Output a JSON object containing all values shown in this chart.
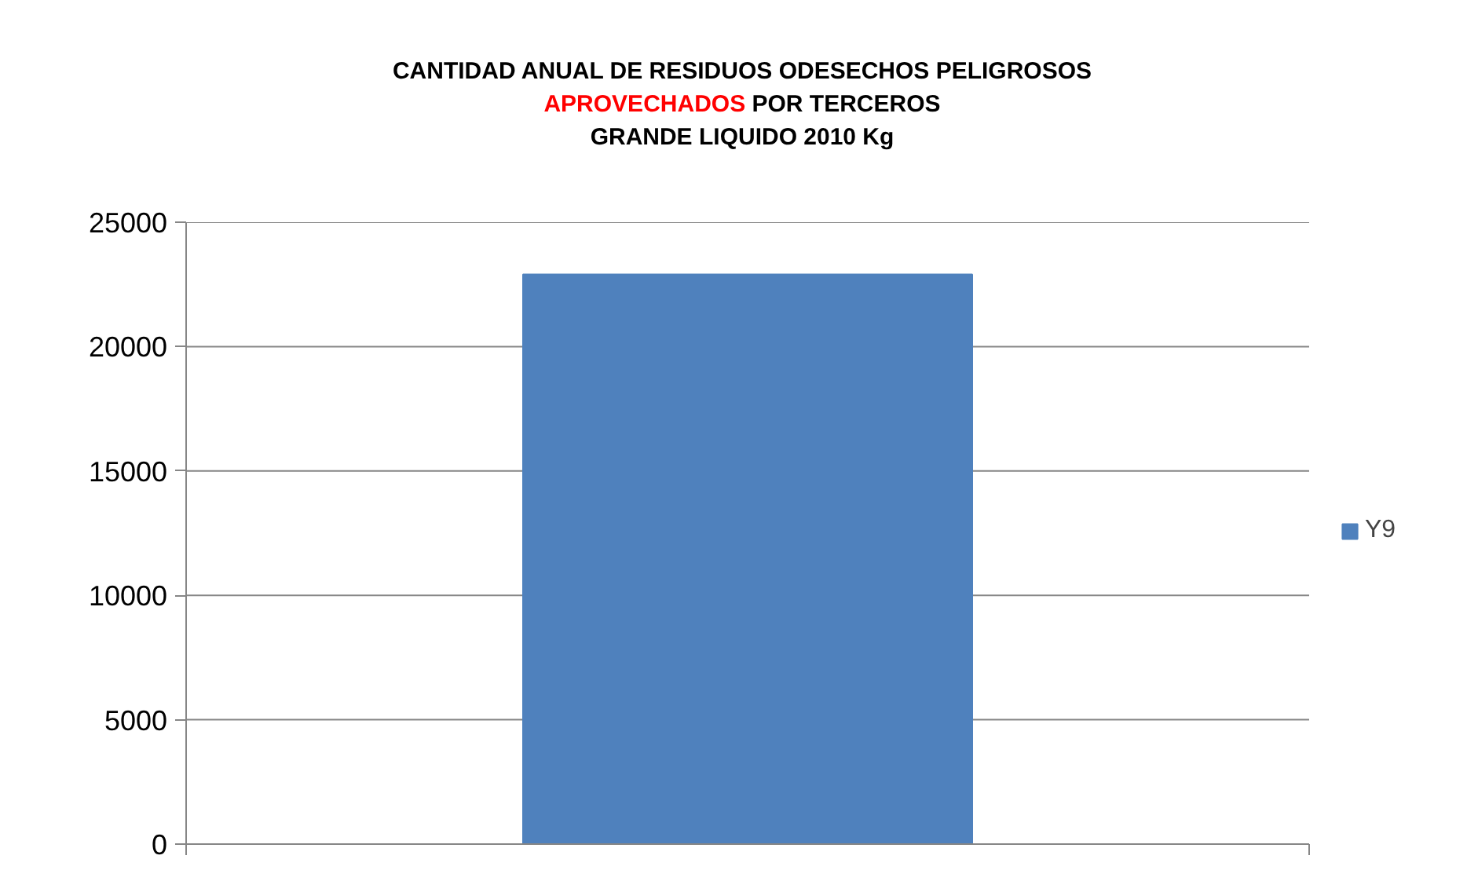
{
  "chart_data": {
    "type": "bar",
    "title": "CANTIDAD ANUAL DE RESIDUOS ODESECHOS PELIGROSOS\nAPROVECHADOS POR TERCEROS\nGRANDE LIQUIDO 2010 Kg",
    "categories": [
      null
    ],
    "series": [
      {
        "name": "Y9",
        "color": "#4f81bd",
        "values": [
          22900
        ]
      }
    ],
    "ylim": [
      0,
      25000
    ],
    "yticks": [
      0,
      5000,
      10000,
      15000,
      20000,
      25000
    ],
    "grid": "y",
    "legend": "right"
  }
}
